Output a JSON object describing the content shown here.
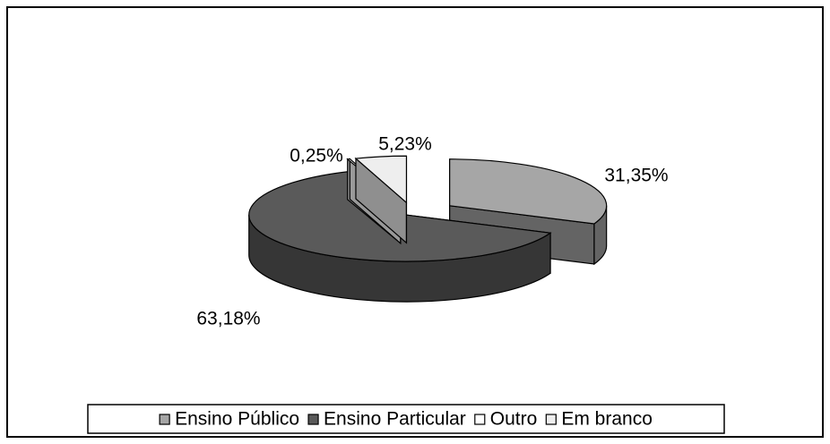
{
  "chart_data": {
    "type": "pie3d",
    "categories": [
      "Ensino Público",
      "Ensino Particular",
      "Outro",
      "Em branco"
    ],
    "values": [
      31.35,
      63.18,
      0.25,
      5.23
    ],
    "value_labels": [
      "31,35%",
      "63,18%",
      "0,25%",
      "5,23%"
    ],
    "colors": [
      "#a6a6a6",
      "#5a5a5a",
      "#ffffff",
      "#eeeeee"
    ],
    "legend": "bottom"
  }
}
